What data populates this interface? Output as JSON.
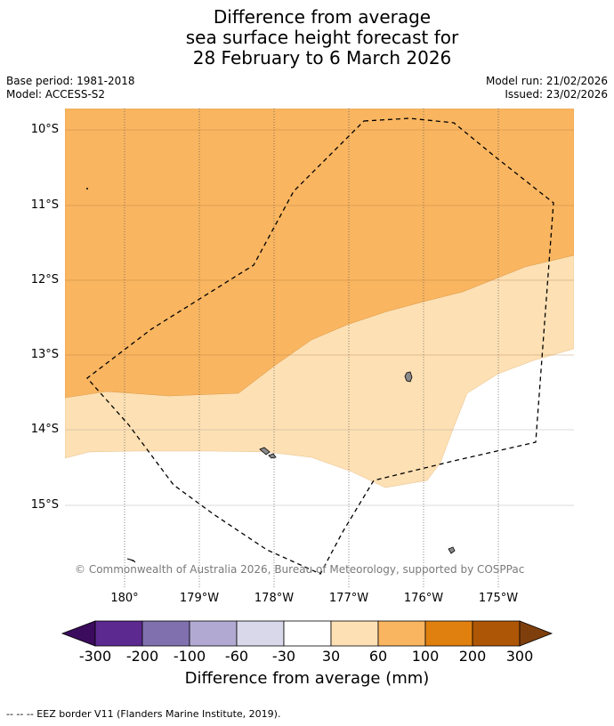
{
  "title": {
    "line1": "Difference from average",
    "line2": "sea surface height forecast for",
    "line3": "28 February to 6 March 2026"
  },
  "meta": {
    "base_period": "Base period: 1981-2018",
    "model": "Model: ACCESS-S2",
    "model_run": "Model run: 21/02/2026",
    "issued": "Issued: 23/02/2026"
  },
  "map": {
    "lat_labels": [
      "10°S",
      "11°S",
      "12°S",
      "13°S",
      "14°S",
      "15°S"
    ],
    "lon_labels": [
      "180°",
      "179°W",
      "178°W",
      "177°W",
      "176°W",
      "175°W"
    ],
    "copyright": "© Commonwealth of Australia 2026, Bureau of Meteorology, supported by COSPPac",
    "colors": {
      "band_60_100": "#f9b560",
      "band_30_60": "#fde0b4",
      "band_neutral": "#ffffff",
      "land": "#8a8a8a"
    }
  },
  "colorbar": {
    "ticks": [
      "-300",
      "-200",
      "-100",
      "-60",
      "-30",
      "30",
      "60",
      "100",
      "200",
      "300"
    ],
    "colors": [
      "#3b0c5e",
      "#5c2990",
      "#8071ae",
      "#b1a9d1",
      "#d8d8ea",
      "#ffffff",
      "#fde0b4",
      "#f9b560",
      "#e0800f",
      "#ad5606",
      "#7f3f0d"
    ],
    "label": "Difference from average (mm)"
  },
  "footer": {
    "eez_legend": "--  --  -- EEZ border V11 (Flanders Marine Institute, 2019)."
  }
}
